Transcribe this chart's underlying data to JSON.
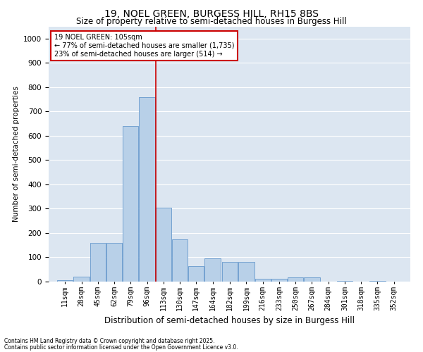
{
  "title1": "19, NOEL GREEN, BURGESS HILL, RH15 8BS",
  "title2": "Size of property relative to semi-detached houses in Burgess Hill",
  "xlabel": "Distribution of semi-detached houses by size in Burgess Hill",
  "ylabel": "Number of semi-detached properties",
  "footnote1": "Contains HM Land Registry data © Crown copyright and database right 2025.",
  "footnote2": "Contains public sector information licensed under the Open Government Licence v3.0.",
  "annotation_title": "19 NOEL GREEN: 105sqm",
  "annotation_line1": "← 77% of semi-detached houses are smaller (1,735)",
  "annotation_line2": "23% of semi-detached houses are larger (514) →",
  "subject_value": 105,
  "bar_color": "#b8d0e8",
  "bar_edge_color": "#6699cc",
  "vline_color": "#cc0000",
  "annotation_box_color": "#cc0000",
  "background_color": "#dce6f1",
  "fig_background_color": "#ffffff",
  "categories": [
    11,
    28,
    45,
    62,
    79,
    96,
    113,
    130,
    147,
    164,
    182,
    199,
    216,
    233,
    250,
    267,
    284,
    301,
    318,
    335,
    352
  ],
  "bin_width": 17,
  "values": [
    5,
    20,
    160,
    160,
    640,
    760,
    305,
    175,
    65,
    95,
    80,
    80,
    12,
    12,
    18,
    18,
    0,
    4,
    0,
    4,
    0
  ],
  "ylim": [
    0,
    1050
  ],
  "yticks": [
    0,
    100,
    200,
    300,
    400,
    500,
    600,
    700,
    800,
    900,
    1000
  ],
  "grid_color": "#ffffff",
  "title_fontsize": 10,
  "subtitle_fontsize": 8.5,
  "ylabel_fontsize": 7.5,
  "xlabel_fontsize": 8.5,
  "tick_fontsize": 7,
  "footnote_fontsize": 5.5
}
